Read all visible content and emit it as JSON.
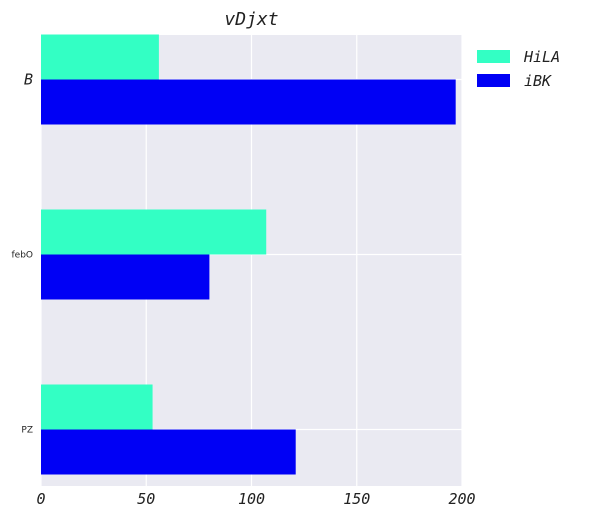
{
  "chart_data": {
    "type": "bar",
    "orientation": "horizontal",
    "title": "vDjxt",
    "xlabel": "",
    "ylabel": "",
    "categories": [
      "B",
      "febO",
      "PZ"
    ],
    "series": [
      {
        "name": "HiLA",
        "values": [
          56,
          107,
          53
        ],
        "color": "#33ffc4"
      },
      {
        "name": "iBK",
        "values": [
          197,
          80,
          121
        ],
        "color": "#0000f5"
      }
    ],
    "xlim": [
      0,
      200
    ],
    "xticks": [
      0,
      50,
      100,
      150,
      200
    ],
    "grid": true,
    "legend": "right"
  },
  "colors": {
    "plot_background": "#eaeaf2",
    "grid": "#ffffff"
  }
}
